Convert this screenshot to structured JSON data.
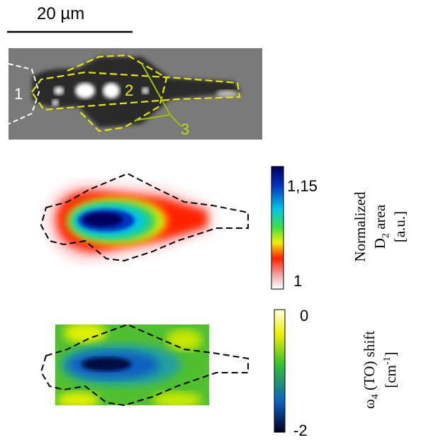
{
  "scale_bar": {
    "label": "20 µm"
  },
  "image_labels": [
    "1",
    "2",
    "3"
  ],
  "colorbars": [
    {
      "top_label": "1,15",
      "bottom_label": "1",
      "title": {
        "line1": "Normalized",
        "line2": {
          "main": "D",
          "subscript": "2",
          "after": " area"
        },
        "line3": "[a.u.]"
      }
    },
    {
      "top_label": "0",
      "bottom_label": "-2",
      "title": {
        "line1": {
          "main": "ω",
          "subscript": "4",
          "after": " (TO) shift"
        },
        "line2": {
          "main": "[cm",
          "superscript": "-1",
          "after": "]"
        }
      }
    }
  ]
}
